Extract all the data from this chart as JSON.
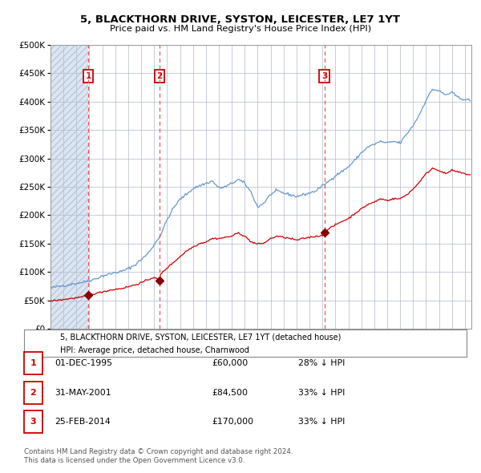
{
  "title": "5, BLACKTHORN DRIVE, SYSTON, LEICESTER, LE7 1YT",
  "subtitle": "Price paid vs. HM Land Registry's House Price Index (HPI)",
  "legend_label_red": "5, BLACKTHORN DRIVE, SYSTON, LEICESTER, LE7 1YT (detached house)",
  "legend_label_blue": "HPI: Average price, detached house, Charnwood",
  "footer1": "Contains HM Land Registry data © Crown copyright and database right 2024.",
  "footer2": "This data is licensed under the Open Government Licence v3.0.",
  "sales": [
    {
      "num": 1,
      "date": "01-DEC-1995",
      "price": 60000,
      "pct": "28% ↓ HPI",
      "date_val": 1995.917
    },
    {
      "num": 2,
      "date": "31-MAY-2001",
      "price": 84500,
      "pct": "33% ↓ HPI",
      "date_val": 2001.416
    },
    {
      "num": 3,
      "date": "25-FEB-2014",
      "price": 170000,
      "pct": "33% ↓ HPI",
      "date_val": 2014.154
    }
  ],
  "ylim": [
    0,
    500000
  ],
  "yticks": [
    0,
    50000,
    100000,
    150000,
    200000,
    250000,
    300000,
    350000,
    400000,
    450000,
    500000
  ],
  "xlim_start": 1993.0,
  "xlim_end": 2025.5,
  "plot_bg": "#FFFFFF",
  "grid_color": "#b0b8d0",
  "hatch_bg_color": "#dce6f1",
  "red_line_color": "#CC0000",
  "blue_line_color": "#6699CC",
  "vline_color": "#EE5555",
  "marker_color": "#880000",
  "sale_box_color": "#CC0000",
  "legend_border_color": "#888888",
  "footer_color": "#555555"
}
